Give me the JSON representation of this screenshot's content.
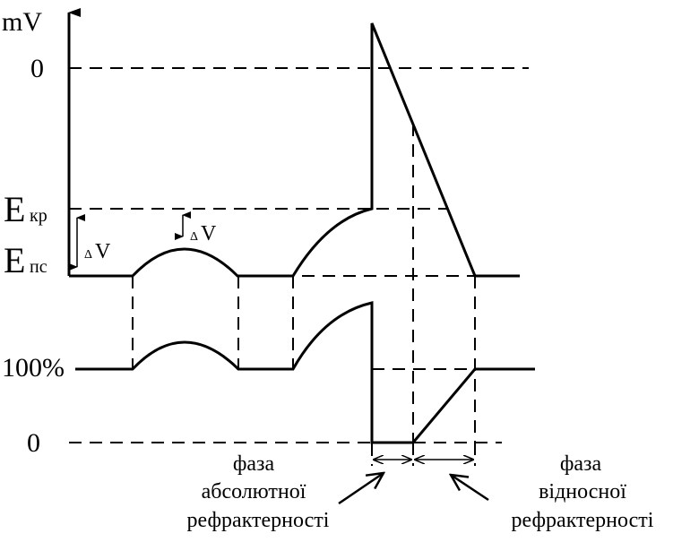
{
  "labels": {
    "unit": "mV",
    "zero_top": "0",
    "e_kr_main": "E",
    "e_kr_sub": "кр",
    "e_ps_main": "E",
    "e_ps_sub": "пс",
    "delta_v_1": "V",
    "delta_v_2": "V",
    "delta_symbol": "Δ",
    "percent_100": "100%",
    "zero_bottom": "0"
  },
  "captions": {
    "absolute": [
      "фаза",
      "абсолютної",
      "рефрактерності"
    ],
    "relative": [
      "фаза",
      "відносної",
      "рефрактерності"
    ]
  }
}
